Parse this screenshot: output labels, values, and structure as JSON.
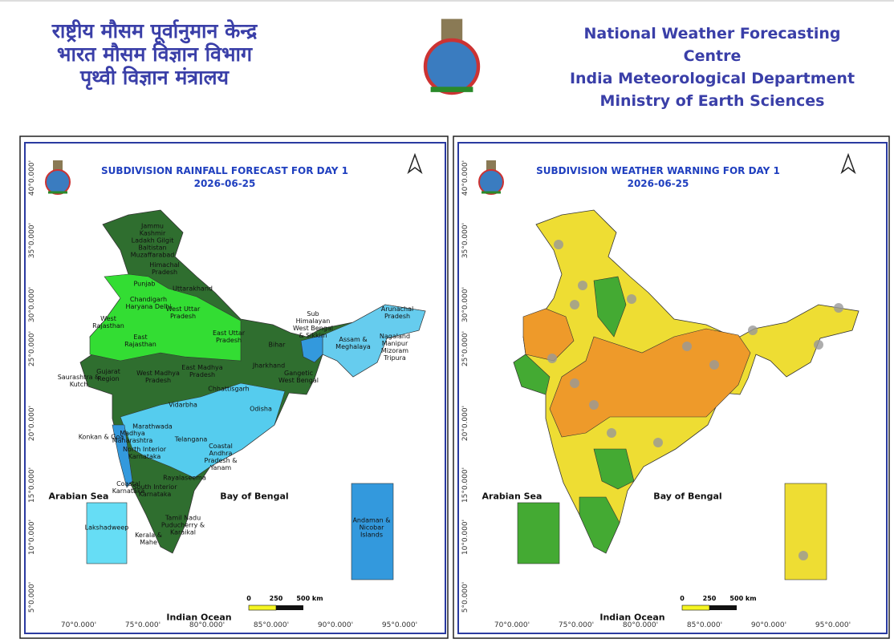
{
  "header": {
    "hindi": [
      "राष्ट्रीय मौसम पूर्वानुमान केन्द्र",
      "भारत मौसम विज्ञान विभाग",
      "पृथ्वी विज्ञान मंत्रालय"
    ],
    "english": [
      "National Weather Forecasting Centre",
      "India Meteorological Department",
      "Ministry of Earth Sciences"
    ]
  },
  "coordinates": {
    "lat": [
      "40°0.000'",
      "35°0.000'",
      "30°0.000'",
      "25°0.000'",
      "20°0.000'",
      "15°0.000'",
      "10°0.000'",
      "5°0.000'"
    ],
    "lon": [
      "70°0.000'",
      "75°0.000'",
      "80°0.000'",
      "85°0.000'",
      "90°0.000'",
      "95°0.000'"
    ]
  },
  "panels": [
    {
      "title": "SUBDIVISION RAINFALL FORECAST FOR DAY 1",
      "date": "2026-06-25",
      "seas": [
        "Arabian Sea",
        "Bay of Bengal",
        "Indian Ocean"
      ],
      "scale": [
        "0",
        "250",
        "500 km"
      ],
      "regions": [
        "Jammu Kashmir Ladakh Gilgit Baltistan Muzaffarabad",
        "Himachal Pradesh",
        "Punjab",
        "Uttarakhand",
        "Chandigarh Haryana Delhi",
        "West Rajasthan",
        "East Rajasthan",
        "West Uttar Pradesh",
        "East Uttar Pradesh",
        "Bihar",
        "Sub Himalayan West Bengal & Sikkim",
        "Arunachal Pradesh",
        "Assam & Meghalaya",
        "Nagaland Manipur Mizoram Tripura",
        "Gujarat Region",
        "Saurashtra & Kutch",
        "West Madhya Pradesh",
        "East Madhya Pradesh",
        "Jharkhand",
        "Gangetic West Bengal",
        "Chhattisgarh",
        "Odisha",
        "Vidarbha",
        "Marathwada",
        "Madhya Maharashtra",
        "Konkan & Goa",
        "Telangana",
        "Coastal Andhra Pradesh & Yanam",
        "North Interior Karnataka",
        "Rayalaseema",
        "Coastal Karnataka",
        "South Interior Karnataka",
        "Tamil Nadu Puducherry & Karaikal",
        "Kerala & Mahe",
        "Lakshadweep",
        "Andaman & Nicobar Islands"
      ]
    },
    {
      "title": "SUBDIVISION WEATHER WARNING FOR DAY 1",
      "date": "2026-06-25",
      "seas": [
        "Arabian Sea",
        "Bay of Bengal",
        "Indian Ocean"
      ],
      "scale": [
        "0",
        "250",
        "500 km"
      ]
    }
  ]
}
